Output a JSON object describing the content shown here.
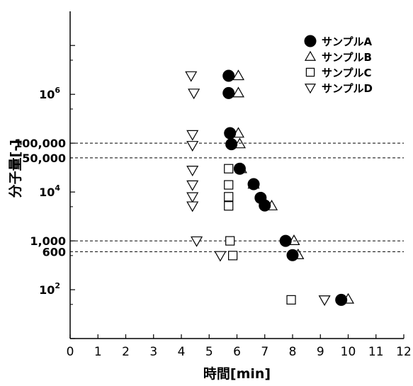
{
  "chart_data": {
    "type": "scatter",
    "title": "",
    "xlabel": "時間[min]",
    "ylabel": "分子量[-]",
    "xlim": [
      0,
      12
    ],
    "ylim": [
      10,
      50000000
    ],
    "y_scale": "log",
    "x_ticks": [
      "0",
      "1",
      "2",
      "3",
      "4",
      "5",
      "6",
      "7",
      "8",
      "9",
      "10",
      "11",
      "12"
    ],
    "y_ticks": [
      {
        "value": 100,
        "label": "10",
        "sup": "2"
      },
      {
        "value": 600,
        "label": "600",
        "sup": ""
      },
      {
        "value": 1000,
        "label": "1,000",
        "sup": ""
      },
      {
        "value": 10000,
        "label": "10",
        "sup": "4"
      },
      {
        "value": 50000,
        "label": "50,000",
        "sup": ""
      },
      {
        "value": 100000,
        "label": "100,000",
        "sup": ""
      },
      {
        "value": 1000000,
        "label": "10",
        "sup": "6"
      }
    ],
    "reference_lines": [
      100000,
      50000,
      1000,
      600
    ],
    "legend_position": "top-right",
    "grid": false,
    "series": [
      {
        "name": "サンプルA",
        "marker": "filled-circle",
        "points": [
          [
            5.7,
            2400000
          ],
          [
            5.7,
            1060000
          ],
          [
            5.75,
            160000
          ],
          [
            5.8,
            95000
          ],
          [
            6.1,
            30000
          ],
          [
            6.6,
            14500
          ],
          [
            6.85,
            7600
          ],
          [
            7.0,
            5300
          ],
          [
            7.75,
            1000
          ],
          [
            8.0,
            510
          ],
          [
            9.75,
            62
          ]
        ]
      },
      {
        "name": "サンプルB",
        "marker": "triangle-up",
        "points": [
          [
            6.05,
            2400000
          ],
          [
            6.05,
            1070000
          ],
          [
            6.05,
            160000
          ],
          [
            6.1,
            97000
          ],
          [
            6.15,
            30000
          ],
          [
            6.6,
            14500
          ],
          [
            6.9,
            7600
          ],
          [
            7.25,
            5200
          ],
          [
            8.05,
            1010
          ],
          [
            8.2,
            520
          ],
          [
            10.0,
            64
          ]
        ]
      },
      {
        "name": "サンプルC",
        "marker": "square",
        "points": [
          [
            5.7,
            30000
          ],
          [
            5.7,
            14000
          ],
          [
            5.7,
            8000
          ],
          [
            5.7,
            5200
          ],
          [
            5.75,
            1000
          ],
          [
            5.85,
            500
          ],
          [
            7.95,
            62
          ]
        ]
      },
      {
        "name": "サンプルD",
        "marker": "triangle-down",
        "points": [
          [
            4.35,
            2400000
          ],
          [
            4.45,
            1060000
          ],
          [
            4.4,
            150000
          ],
          [
            4.4,
            90000
          ],
          [
            4.4,
            28000
          ],
          [
            4.4,
            14000
          ],
          [
            4.4,
            8000
          ],
          [
            4.4,
            5200
          ],
          [
            4.55,
            1000
          ],
          [
            5.4,
            500
          ],
          [
            9.15,
            62
          ]
        ]
      }
    ]
  }
}
